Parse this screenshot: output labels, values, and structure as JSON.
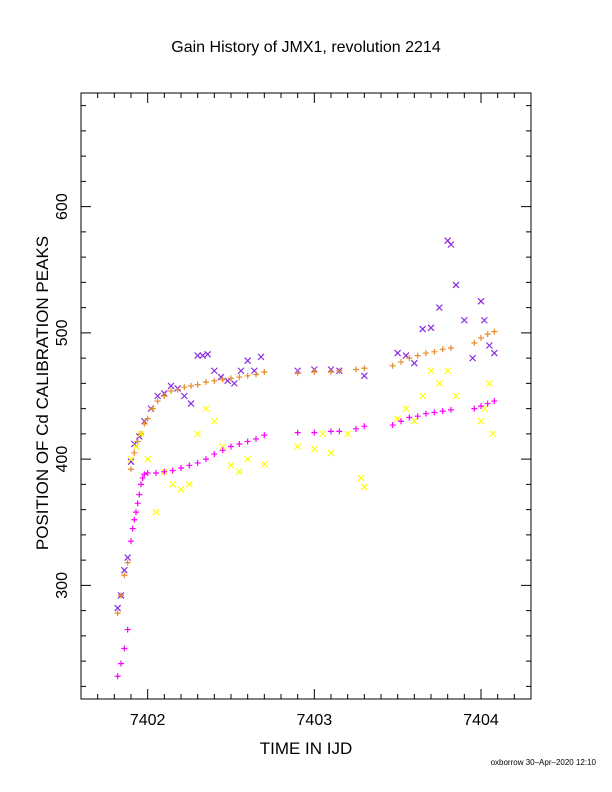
{
  "chart_data": {
    "type": "scatter",
    "title": "Gain History of JMX1, revolution 2214",
    "xlabel": "TIME IN IJD",
    "ylabel": "POSITION OF Cd CALIBRATION PEAKS",
    "xlim": [
      7401.6,
      7404.3
    ],
    "ylim": [
      210,
      690
    ],
    "x_ticks": [
      7402,
      7403,
      7404
    ],
    "y_ticks": [
      300,
      400,
      500,
      600
    ],
    "legend": "none",
    "grid": false,
    "series": [
      {
        "marker": "x",
        "color": "#8a2be2",
        "x": [
          7401.82,
          7401.84,
          7401.86,
          7401.88,
          7401.9,
          7401.92,
          7401.95,
          7401.98,
          7402.02,
          7402.06,
          7402.1,
          7402.14,
          7402.18,
          7402.22,
          7402.26,
          7402.3,
          7402.33,
          7402.36,
          7402.4,
          7402.44,
          7402.48,
          7402.52,
          7402.56,
          7402.6,
          7402.64,
          7402.68,
          7402.9,
          7403.0,
          7403.1,
          7403.15,
          7403.3,
          7403.5,
          7403.55,
          7403.6,
          7403.65,
          7403.7,
          7403.75,
          7403.8,
          7403.82,
          7403.85,
          7403.9,
          7403.95,
          7404.0,
          7404.02,
          7404.05,
          7404.08
        ],
        "y": [
          282,
          292,
          312,
          322,
          398,
          412,
          418,
          430,
          440,
          450,
          452,
          458,
          456,
          450,
          444,
          482,
          482,
          483,
          470,
          465,
          462,
          460,
          470,
          478,
          470,
          481,
          470,
          471,
          471,
          470,
          466,
          484,
          482,
          476,
          503,
          504,
          520,
          573,
          570,
          538,
          510,
          480,
          525,
          510,
          490,
          484
        ]
      },
      {
        "marker": "+",
        "color": "#e88a2a",
        "x": [
          7401.82,
          7401.84,
          7401.86,
          7401.88,
          7401.9,
          7401.92,
          7401.94,
          7401.96,
          7401.98,
          7402.0,
          7402.03,
          7402.06,
          7402.1,
          7402.14,
          7402.18,
          7402.22,
          7402.26,
          7402.3,
          7402.35,
          7402.4,
          7402.45,
          7402.5,
          7402.55,
          7402.6,
          7402.65,
          7402.7,
          7402.9,
          7403.0,
          7403.1,
          7403.15,
          7403.25,
          7403.3,
          7403.47,
          7403.52,
          7403.57,
          7403.62,
          7403.67,
          7403.72,
          7403.77,
          7403.82,
          7403.96,
          7404.0,
          7404.04,
          7404.08
        ],
        "y": [
          278,
          292,
          308,
          318,
          392,
          405,
          414,
          420,
          428,
          432,
          440,
          446,
          450,
          454,
          455,
          457,
          458,
          459,
          461,
          462,
          463,
          464,
          465,
          466,
          467,
          469,
          468,
          469,
          469,
          470,
          471,
          472,
          474,
          477,
          480,
          482,
          484,
          485,
          487,
          488,
          492,
          496,
          499,
          501
        ]
      },
      {
        "marker": "x",
        "color": "#ffff00",
        "x": [
          7401.9,
          7401.93,
          7401.96,
          7402.0,
          7402.05,
          7402.1,
          7402.15,
          7402.2,
          7402.25,
          7402.3,
          7402.35,
          7402.4,
          7402.45,
          7402.5,
          7402.55,
          7402.6,
          7402.7,
          7402.9,
          7403.0,
          7403.05,
          7403.1,
          7403.2,
          7403.28,
          7403.3,
          7403.5,
          7403.55,
          7403.6,
          7403.65,
          7403.7,
          7403.75,
          7403.8,
          7403.85,
          7404.0,
          7404.02,
          7404.05,
          7404.07
        ],
        "y": [
          400,
          410,
          420,
          400,
          358,
          390,
          380,
          376,
          380,
          420,
          440,
          430,
          410,
          395,
          390,
          400,
          396,
          410,
          408,
          420,
          405,
          420,
          385,
          378,
          432,
          440,
          430,
          450,
          470,
          460,
          470,
          450,
          430,
          440,
          460,
          420
        ]
      },
      {
        "marker": "+",
        "color": "#ff00ff",
        "x": [
          7401.82,
          7401.84,
          7401.86,
          7401.88,
          7401.9,
          7401.91,
          7401.92,
          7401.93,
          7401.94,
          7401.95,
          7401.96,
          7401.97,
          7401.98,
          7402.0,
          7402.05,
          7402.1,
          7402.15,
          7402.2,
          7402.25,
          7402.3,
          7402.35,
          7402.4,
          7402.45,
          7402.5,
          7402.55,
          7402.6,
          7402.65,
          7402.7,
          7402.9,
          7403.0,
          7403.1,
          7403.15,
          7403.25,
          7403.3,
          7403.47,
          7403.52,
          7403.57,
          7403.62,
          7403.67,
          7403.72,
          7403.77,
          7403.82,
          7403.96,
          7404.0,
          7404.04,
          7404.08
        ],
        "y": [
          228,
          238,
          250,
          265,
          335,
          345,
          352,
          358,
          365,
          372,
          380,
          385,
          388,
          389,
          389,
          390,
          391,
          393,
          395,
          397,
          400,
          404,
          407,
          410,
          412,
          414,
          416,
          419,
          421,
          421,
          422,
          422,
          424,
          426,
          427,
          430,
          433,
          434,
          436,
          437,
          438,
          439,
          440,
          442,
          444,
          446
        ]
      }
    ]
  },
  "footer": "oxborrow 30–Apr–2020 12:10"
}
